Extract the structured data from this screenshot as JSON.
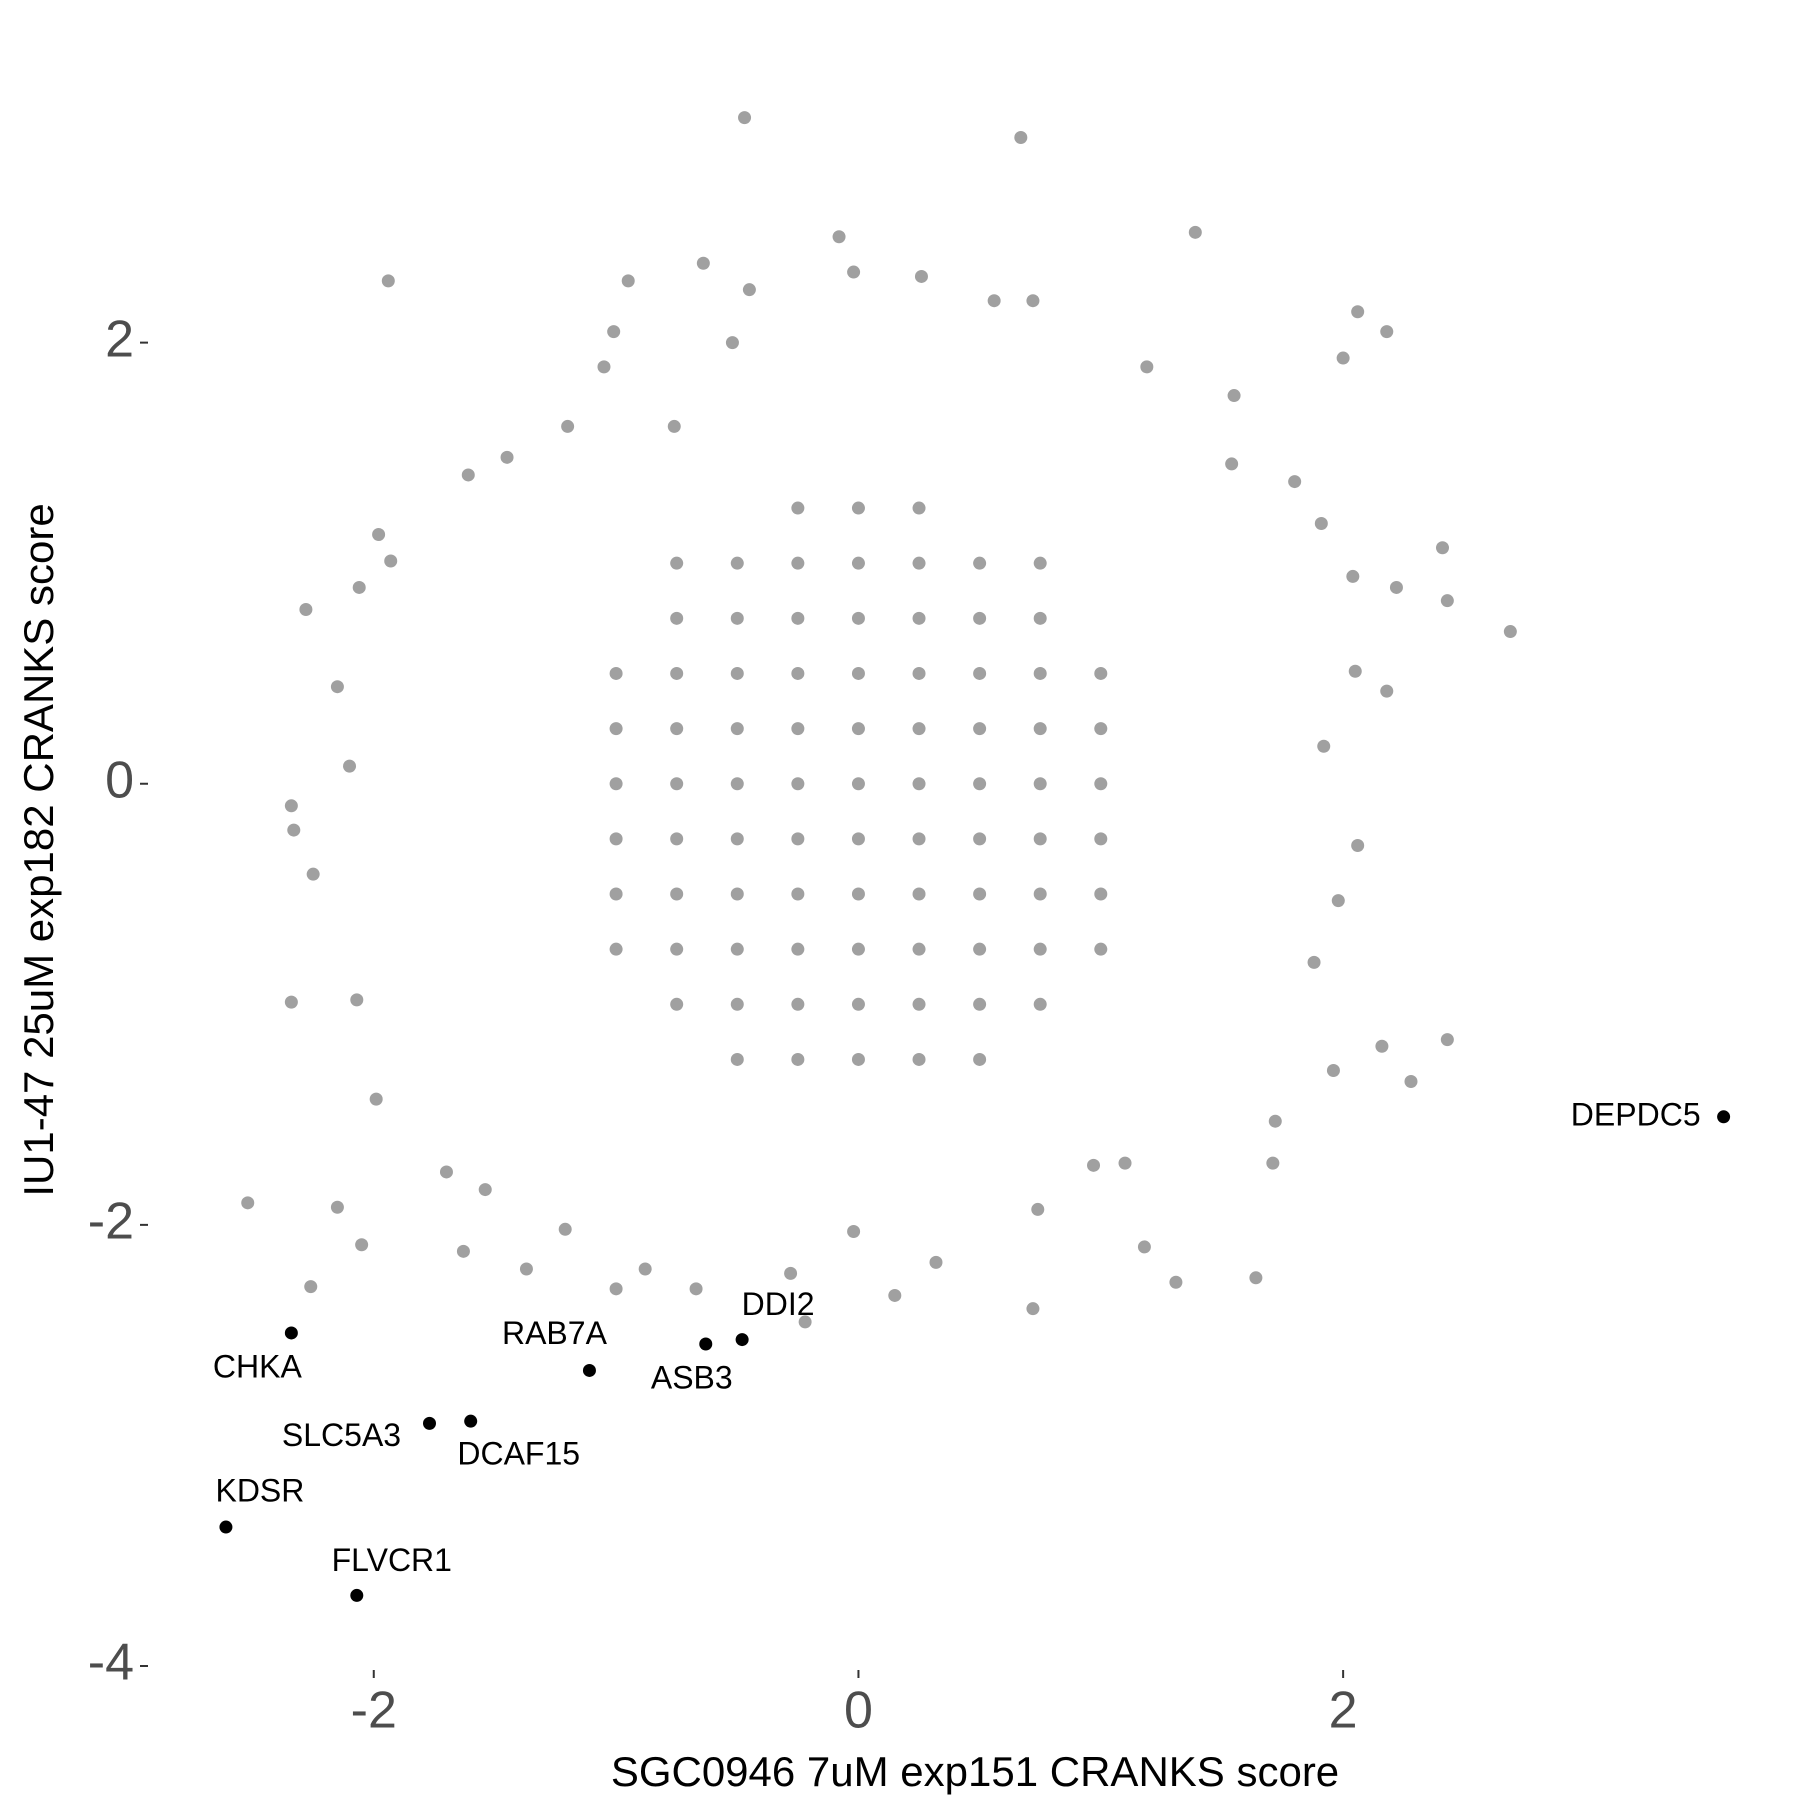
{
  "chart_data": {
    "type": "scatter",
    "xlabel": "SGC0946 7uM exp151 CRANKS score",
    "ylabel": "IU1-47 25uM exp182 CRANKS score",
    "xlim": [
      -2.75,
      3.65
    ],
    "ylim": [
      -4,
      3.1
    ],
    "xticks": [
      -2,
      0,
      2
    ],
    "yticks": [
      -4,
      -2,
      0,
      2
    ],
    "grid": false,
    "points": {
      "color": "#a0a0a0",
      "x": [
        -0.47,
        0.67,
        1.39,
        -0.08,
        -1.94,
        -0.64,
        -0.95,
        -0.02,
        -0.45,
        0.26,
        0.56,
        0.72,
        2.06,
        2.18,
        2.0,
        -1.01,
        -1.05,
        -0.52,
        2.69,
        2.43,
        2.41,
        1.91,
        2.04,
        2.22,
        2.05,
        2.18,
        2.06,
        1.98,
        2.43,
        2.28,
        2.16,
        1.96,
        1.72,
        1.71,
        1.64,
        1.31,
        1.18,
        0.72,
        0.74,
        0.32,
        0.15,
        -0.02,
        -0.22,
        -0.28,
        -0.67,
        -0.88,
        -1.0,
        -1.21,
        -1.37,
        -1.63,
        -2.05,
        -2.26,
        -2.52,
        -2.15,
        -2.34,
        -2.25,
        -2.33,
        -2.34,
        -2.28,
        -2.15,
        -1.93,
        -1.98,
        -2.06,
        -1.61,
        -1.45,
        -1.2,
        -0.76,
        1.54,
        1.8,
        1.55,
        1.19,
        -1.99,
        -2.07,
        -2.1,
        1.92,
        1.88,
        1.1,
        0.97,
        -1.54,
        -1.7,
        -0.25,
        0,
        0.25,
        -0.75,
        -0.5,
        -0.25,
        0,
        0.25,
        0.5,
        0.75,
        -0.75,
        -0.5,
        -0.25,
        0,
        0.25,
        0.5,
        0.75,
        -1,
        -0.75,
        -0.5,
        -0.25,
        0,
        0.25,
        0.5,
        0.75,
        1,
        -1,
        -0.75,
        -0.5,
        -0.25,
        0,
        0.25,
        0.5,
        0.75,
        1,
        -1,
        -0.75,
        -0.5,
        -0.25,
        0,
        0.25,
        0.5,
        0.75,
        1,
        -1,
        -0.75,
        -0.5,
        -0.25,
        0,
        0.25,
        0.5,
        0.75,
        1,
        -1,
        -0.75,
        -0.5,
        -0.25,
        0,
        0.25,
        0.5,
        0.75,
        1,
        -1,
        -0.75,
        -0.5,
        -0.25,
        0,
        0.25,
        0.5,
        0.75,
        1,
        -0.75,
        -0.5,
        -0.25,
        0,
        0.25,
        0.5,
        0.75,
        -0.5,
        -0.25,
        0,
        0.25,
        0.5
      ],
      "y": [
        3.02,
        2.93,
        2.5,
        2.48,
        2.28,
        2.36,
        2.28,
        2.32,
        2.24,
        2.3,
        2.19,
        2.19,
        2.14,
        2.05,
        1.93,
        2.05,
        1.89,
        2.0,
        0.69,
        0.83,
        1.07,
        1.18,
        0.94,
        0.89,
        0.51,
        0.42,
        -0.28,
        -0.53,
        -1.16,
        -1.35,
        -1.19,
        -1.3,
        -1.53,
        -1.72,
        -2.24,
        -2.26,
        -2.1,
        -2.38,
        -1.93,
        -2.17,
        -2.32,
        -2.03,
        -2.44,
        -2.22,
        -2.29,
        -2.2,
        -2.29,
        -2.02,
        -2.2,
        -2.12,
        -2.09,
        -2.28,
        -1.9,
        -1.92,
        -0.99,
        -0.41,
        -0.21,
        -0.1,
        0.79,
        0.44,
        1.01,
        1.13,
        0.89,
        1.4,
        1.48,
        1.62,
        1.62,
        1.45,
        1.37,
        1.76,
        1.89,
        -1.43,
        -0.98,
        0.08,
        0.17,
        -0.81,
        -1.72,
        -1.73,
        -1.84,
        -1.76,
        1.25,
        1.25,
        1.25,
        1,
        1,
        1,
        1,
        1,
        1,
        1,
        0.75,
        0.75,
        0.75,
        0.75,
        0.75,
        0.75,
        0.75,
        0.5,
        0.5,
        0.5,
        0.5,
        0.5,
        0.5,
        0.5,
        0.5,
        0.5,
        0.25,
        0.25,
        0.25,
        0.25,
        0.25,
        0.25,
        0.25,
        0.25,
        0.25,
        0,
        0,
        0,
        0,
        0,
        0,
        0,
        0,
        0,
        -0.25,
        -0.25,
        -0.25,
        -0.25,
        -0.25,
        -0.25,
        -0.25,
        -0.25,
        -0.25,
        -0.5,
        -0.5,
        -0.5,
        -0.5,
        -0.5,
        -0.5,
        -0.5,
        -0.5,
        -0.5,
        -0.75,
        -0.75,
        -0.75,
        -0.75,
        -0.75,
        -0.75,
        -0.75,
        -0.75,
        -0.75,
        -1,
        -1,
        -1,
        -1,
        -1,
        -1,
        -1,
        -1.25,
        -1.25,
        -1.25,
        -1.25,
        -1.25
      ]
    },
    "labeled": {
      "color": "#000000",
      "labels": [
        "DEPDC5",
        "CHKA",
        "RAB7A",
        "ASB3",
        "DDI2",
        "SLC5A3",
        "DCAF15",
        "KDSR",
        "FLVCR1"
      ],
      "x": [
        3.57,
        -2.34,
        -1.11,
        -0.63,
        -0.48,
        -1.77,
        -1.6,
        -2.61,
        -2.07
      ],
      "y": [
        -1.51,
        -2.49,
        -2.66,
        -2.54,
        -2.52,
        -2.9,
        -2.89,
        -3.37,
        -3.68
      ]
    }
  }
}
